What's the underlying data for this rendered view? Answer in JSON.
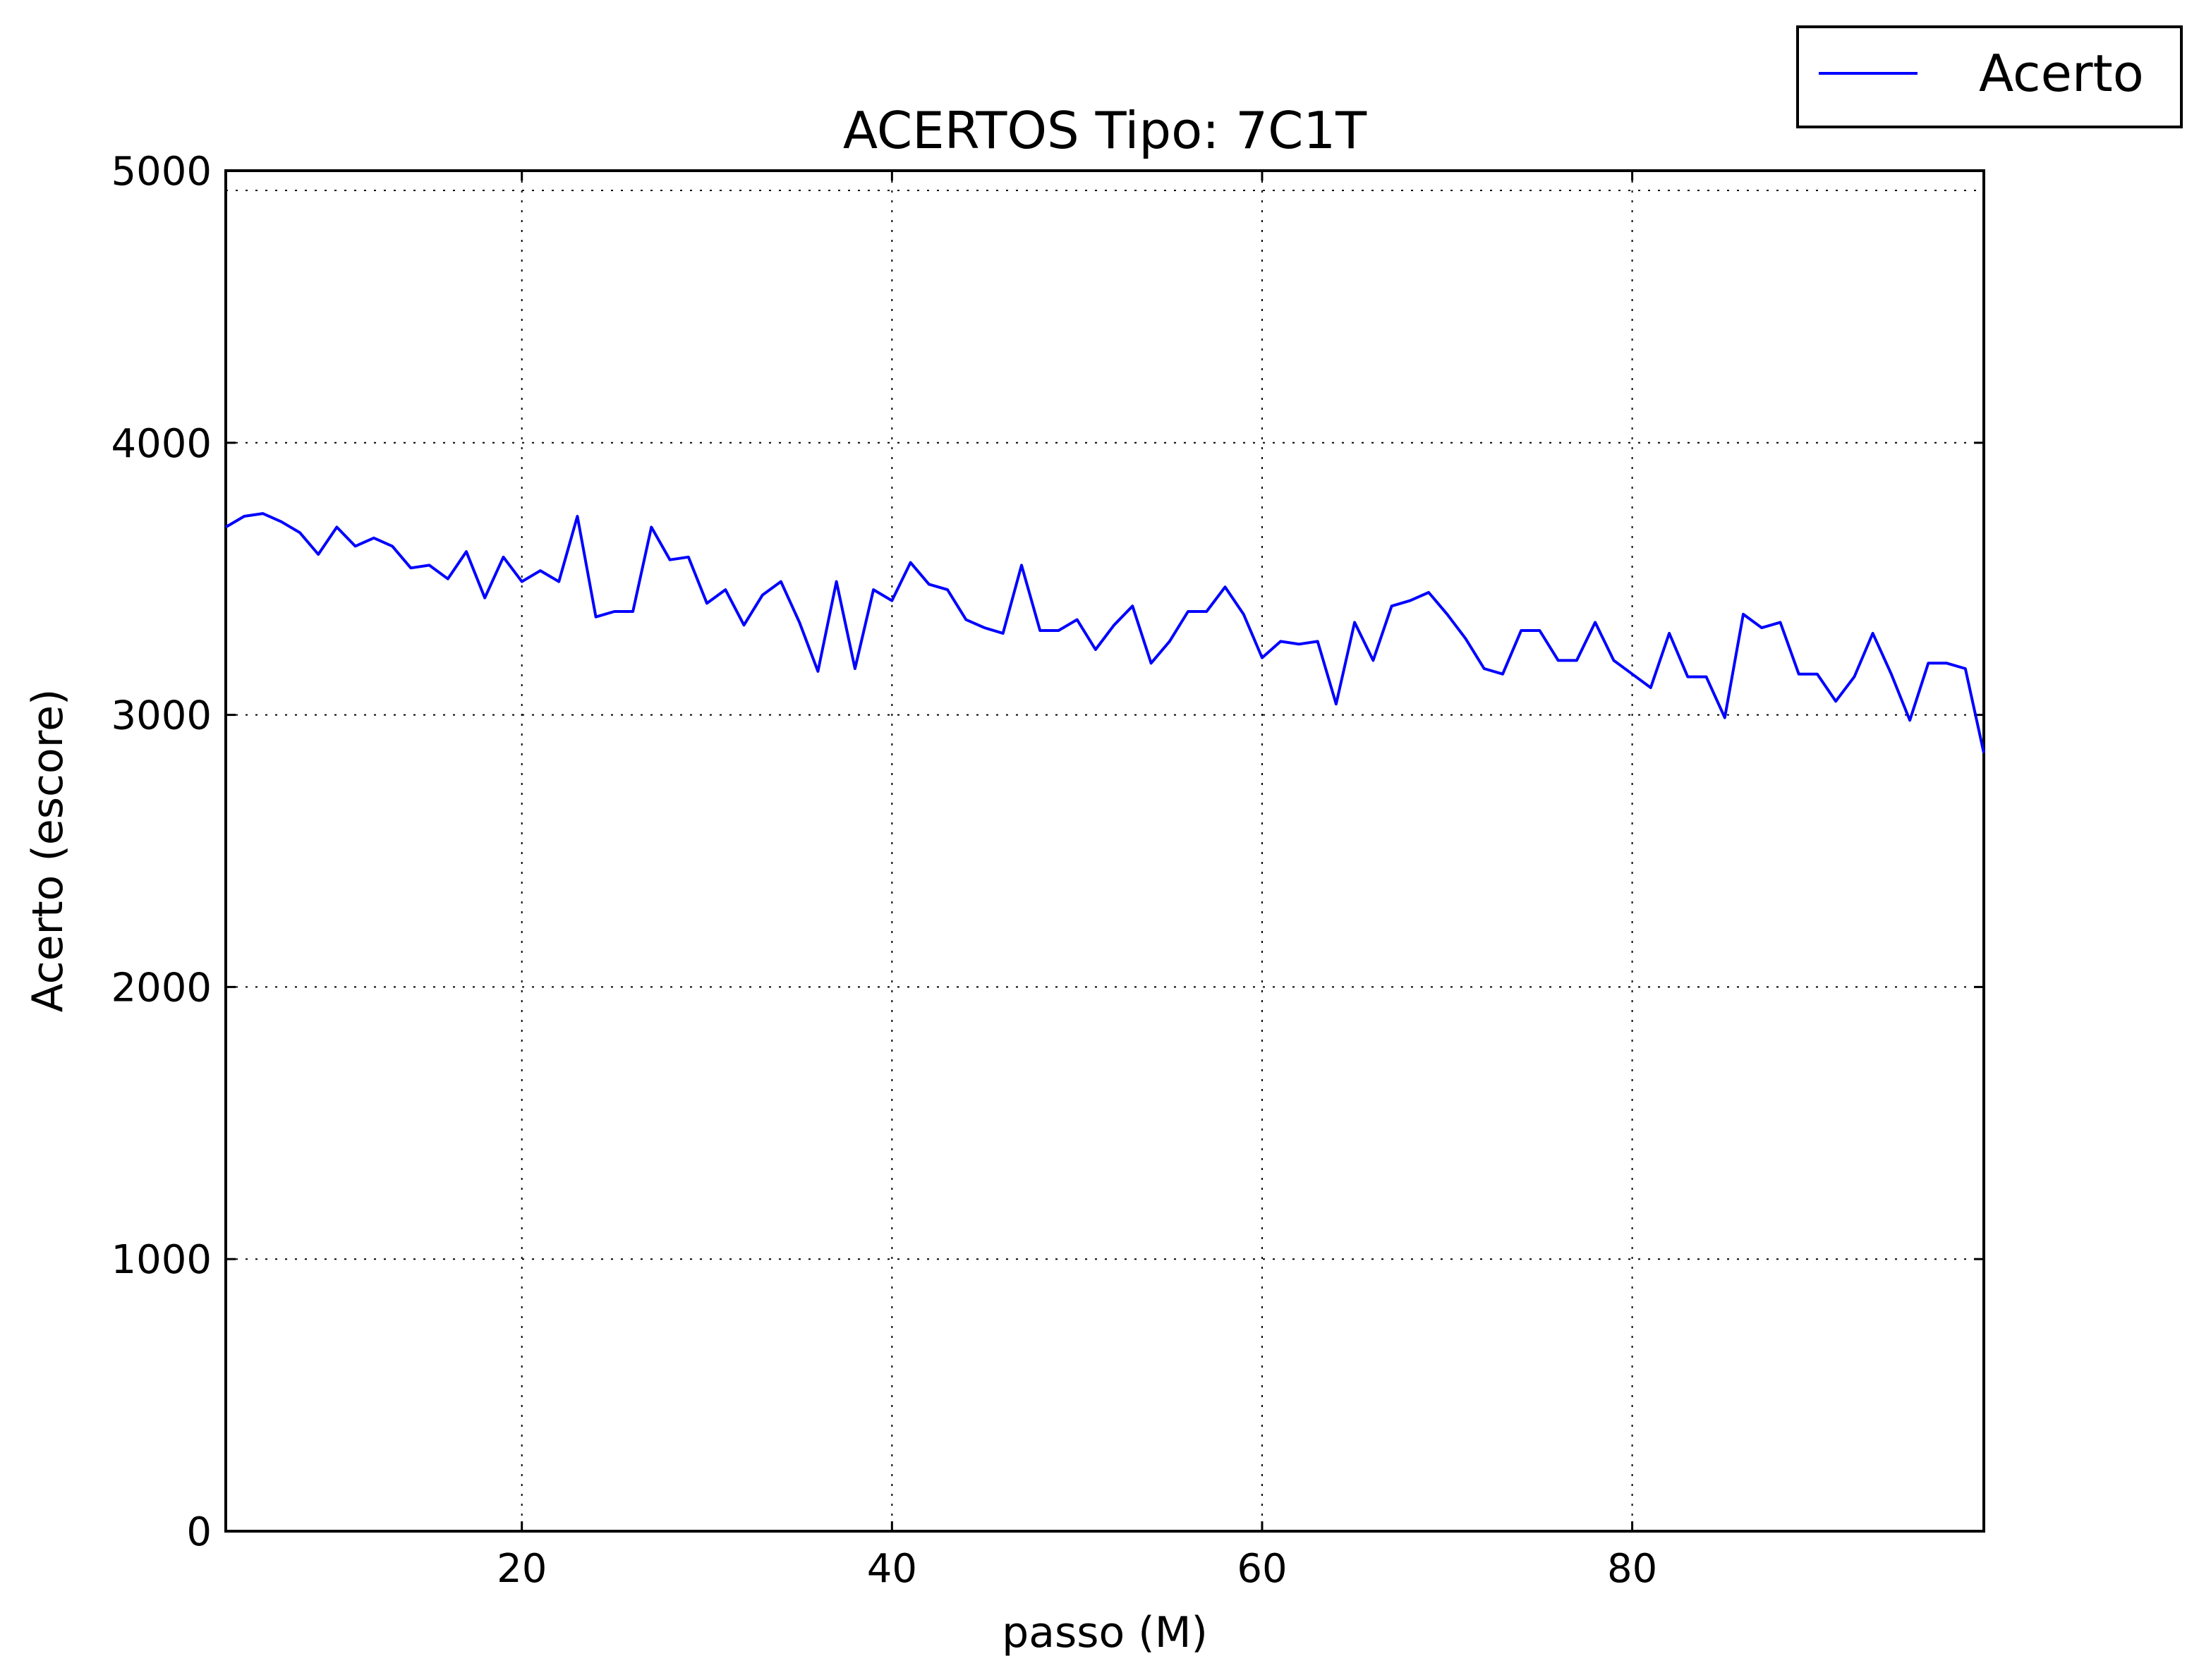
{
  "chart_data": {
    "type": "line",
    "title": "ACERTOS Tipo: 7C1T",
    "xlabel": "passo (M)",
    "ylabel": "Acerto (escore)",
    "xlim": [
      4,
      99
    ],
    "ylim": [
      0,
      5000
    ],
    "xticks": [
      20,
      40,
      60,
      80
    ],
    "xtick_labels": [
      "20",
      "40",
      "60",
      "80"
    ],
    "yticks": [
      0,
      1000,
      2000,
      3000,
      4000,
      5000
    ],
    "ytick_labels": [
      "0",
      "1000",
      "2000",
      "3000",
      "4000",
      "5000"
    ],
    "grid": true,
    "legend": {
      "position": "top-right, outside plot",
      "entries": [
        "Acerto"
      ]
    },
    "colors": {
      "Acerto": "#0000ff"
    },
    "series": [
      {
        "name": "Acerto",
        "x": [
          4,
          5,
          6,
          7,
          8,
          9,
          10,
          11,
          12,
          13,
          14,
          15,
          16,
          17,
          18,
          19,
          20,
          21,
          22,
          23,
          24,
          25,
          26,
          27,
          28,
          29,
          30,
          31,
          32,
          33,
          34,
          35,
          36,
          37,
          38,
          39,
          40,
          41,
          42,
          43,
          44,
          45,
          46,
          47,
          48,
          49,
          50,
          51,
          52,
          53,
          54,
          55,
          56,
          57,
          58,
          59,
          60,
          61,
          62,
          63,
          64,
          65,
          66,
          67,
          68,
          69,
          70,
          71,
          72,
          73,
          74,
          75,
          76,
          77,
          78,
          79,
          80,
          81,
          82,
          83,
          84,
          85,
          86,
          87,
          88,
          89,
          90,
          91,
          92,
          93,
          94,
          95,
          96,
          97,
          98,
          99
        ],
        "y": [
          3690,
          3730,
          3740,
          3710,
          3670,
          3590,
          3690,
          3620,
          3650,
          3620,
          3540,
          3550,
          3500,
          3600,
          3430,
          3580,
          3490,
          3530,
          3490,
          3730,
          3360,
          3380,
          3380,
          3690,
          3570,
          3580,
          3410,
          3460,
          3330,
          3440,
          3490,
          3340,
          3160,
          3490,
          3170,
          3460,
          3420,
          3560,
          3480,
          3460,
          3350,
          3320,
          3300,
          3550,
          3310,
          3310,
          3350,
          3240,
          3330,
          3400,
          3190,
          3270,
          3380,
          3380,
          3470,
          3370,
          3210,
          3270,
          3260,
          3270,
          3040,
          3340,
          3200,
          3400,
          3420,
          3450,
          3370,
          3280,
          3170,
          3150,
          3310,
          3310,
          3200,
          3200,
          3340,
          3200,
          3150,
          3100,
          3300,
          3140,
          3140,
          2990,
          3370,
          3320,
          3340,
          3150,
          3150,
          3050,
          3140,
          3300,
          3150,
          2980,
          3190,
          3190,
          3170,
          2860
        ]
      }
    ]
  }
}
